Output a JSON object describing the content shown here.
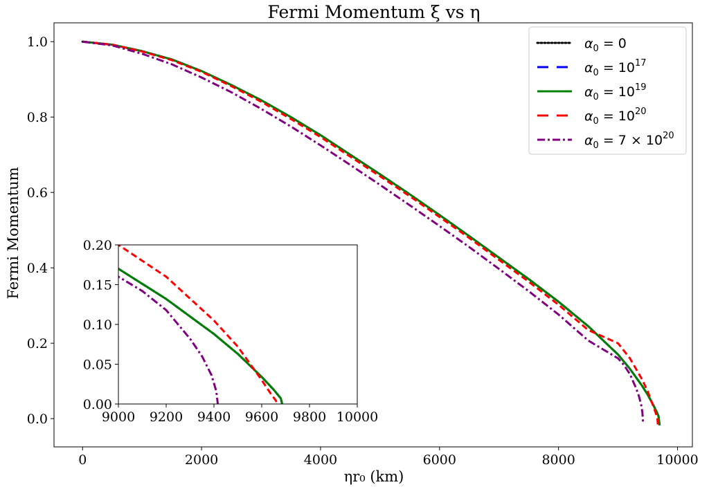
{
  "chart_data": {
    "type": "line",
    "title": "Fermi Momentum ξ vs η",
    "xlabel": "ηr₀ (km)",
    "ylabel": "Fermi Momentum",
    "xlim": [
      -480,
      10250
    ],
    "ylim": [
      -0.075,
      1.05
    ],
    "xticks": [
      0,
      2000,
      4000,
      6000,
      8000,
      10000
    ],
    "yticks": [
      0.0,
      0.2,
      0.4,
      0.6,
      0.8,
      1.0
    ],
    "xtick_labels": [
      "0",
      "2000",
      "4000",
      "6000",
      "8000",
      "10000"
    ],
    "ytick_labels": [
      "0.0",
      "0.2",
      "0.4",
      "0.6",
      "0.8",
      "1.0"
    ],
    "grid": false,
    "legend_position": "top-right",
    "series": [
      {
        "name": "α₀ = 0",
        "legend_main": "α",
        "legend_sub": "0",
        "legend_rest": " = 0",
        "legend_sup": "",
        "color": "#000000",
        "style": "dotted",
        "x": [
          0,
          500,
          1000,
          1500,
          2000,
          2500,
          3000,
          3500,
          4000,
          4500,
          5000,
          5500,
          6000,
          6500,
          7000,
          7500,
          8000,
          8500,
          9000,
          9200,
          9400,
          9500,
          9600,
          9650,
          9680,
          9700
        ],
        "y": [
          1.0,
          0.992,
          0.975,
          0.953,
          0.922,
          0.885,
          0.845,
          0.8,
          0.752,
          0.7,
          0.648,
          0.595,
          0.54,
          0.484,
          0.427,
          0.37,
          0.31,
          0.245,
          0.17,
          0.132,
          0.088,
          0.063,
          0.034,
          0.018,
          0.007,
          -0.018
        ]
      },
      {
        "name": "α₀ = 10¹⁷",
        "legend_main": "α",
        "legend_sub": "0",
        "legend_rest": " = 10",
        "legend_sup": "17",
        "color": "#0000ff",
        "style": "dashed",
        "x": [
          0,
          500,
          1000,
          1500,
          2000,
          2500,
          3000,
          3500,
          4000,
          4500,
          5000,
          5500,
          6000,
          6500,
          7000,
          7500,
          8000,
          8500,
          9000,
          9200,
          9400,
          9500,
          9600,
          9650,
          9680,
          9700
        ],
        "y": [
          1.0,
          0.992,
          0.975,
          0.953,
          0.922,
          0.885,
          0.845,
          0.8,
          0.752,
          0.7,
          0.648,
          0.595,
          0.54,
          0.484,
          0.427,
          0.37,
          0.31,
          0.245,
          0.17,
          0.132,
          0.088,
          0.063,
          0.034,
          0.018,
          0.007,
          -0.018
        ]
      },
      {
        "name": "α₀ = 10¹⁹",
        "legend_main": "α",
        "legend_sub": "0",
        "legend_rest": " = 10",
        "legend_sup": "19",
        "color": "#008000",
        "style": "solid",
        "x": [
          0,
          500,
          1000,
          1500,
          2000,
          2500,
          3000,
          3500,
          4000,
          4500,
          5000,
          5500,
          6000,
          6500,
          7000,
          7500,
          8000,
          8500,
          9000,
          9200,
          9400,
          9500,
          9600,
          9650,
          9680,
          9700
        ],
        "y": [
          1.0,
          0.992,
          0.975,
          0.953,
          0.922,
          0.885,
          0.845,
          0.8,
          0.752,
          0.7,
          0.648,
          0.595,
          0.54,
          0.484,
          0.427,
          0.37,
          0.31,
          0.245,
          0.17,
          0.132,
          0.088,
          0.063,
          0.034,
          0.018,
          0.007,
          -0.018
        ]
      },
      {
        "name": "α₀ = 10²⁰",
        "legend_main": "α",
        "legend_sub": "0",
        "legend_rest": " = 10",
        "legend_sup": "20",
        "color": "#ff0000",
        "style": "dashed",
        "x": [
          0,
          500,
          1000,
          1500,
          2000,
          2500,
          3000,
          3500,
          4000,
          4500,
          5000,
          5500,
          6000,
          6500,
          7000,
          7500,
          8000,
          8500,
          9000,
          9200,
          9400,
          9500,
          9600,
          9640,
          9660,
          9670
        ],
        "y": [
          1.0,
          0.992,
          0.974,
          0.951,
          0.92,
          0.882,
          0.841,
          0.795,
          0.747,
          0.695,
          0.643,
          0.59,
          0.535,
          0.479,
          0.421,
          0.363,
          0.302,
          0.235,
          0.2,
          0.16,
          0.105,
          0.072,
          0.03,
          0.012,
          0.004,
          -0.018
        ]
      },
      {
        "name": "α₀ = 7 × 10²⁰",
        "legend_main": "α",
        "legend_sub": "0",
        "legend_rest": " = 7 × 10",
        "legend_sup": "20",
        "color": "#800080",
        "style": "dashdot",
        "x": [
          0,
          500,
          1000,
          1500,
          2000,
          2500,
          3000,
          3500,
          4000,
          4500,
          5000,
          5500,
          6000,
          6500,
          7000,
          7500,
          8000,
          8500,
          9000,
          9100,
          9200,
          9300,
          9350,
          9390,
          9410,
          9420
        ],
        "y": [
          1.0,
          0.99,
          0.968,
          0.94,
          0.905,
          0.866,
          0.822,
          0.775,
          0.725,
          0.673,
          0.62,
          0.566,
          0.511,
          0.455,
          0.397,
          0.338,
          0.276,
          0.207,
          0.16,
          0.142,
          0.118,
          0.082,
          0.06,
          0.036,
          0.016,
          -0.01
        ]
      }
    ],
    "inset": {
      "xlim": [
        9000,
        10000
      ],
      "ylim": [
        0.0,
        0.2
      ],
      "xticks": [
        9000,
        9200,
        9400,
        9600,
        9800,
        10000
      ],
      "yticks": [
        0.0,
        0.05,
        0.1,
        0.15,
        0.2
      ],
      "xtick_labels": [
        "9000",
        "9200",
        "9400",
        "9600",
        "9800",
        "10000"
      ],
      "ytick_labels": [
        "0.00",
        "0.05",
        "0.10",
        "0.15",
        "0.20"
      ]
    }
  }
}
